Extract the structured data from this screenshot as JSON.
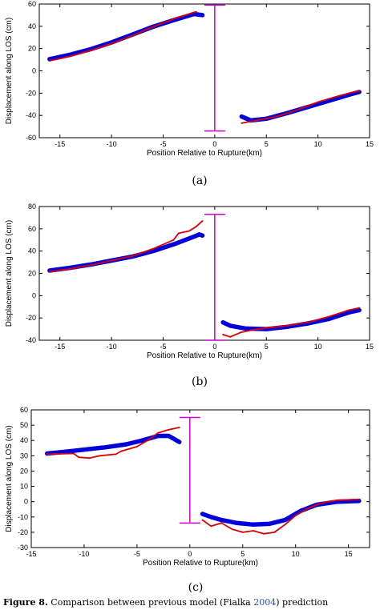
{
  "chart_data": [
    {
      "type": "scatter",
      "panel_label": "(a)",
      "xlabel": "Position Relative to Rupture(km)",
      "ylabel": "Displacement along LOS (cm)",
      "xlim": [
        -17,
        15
      ],
      "ylim": [
        -60,
        60
      ],
      "xticks": [
        -15,
        -10,
        -5,
        0,
        5,
        10,
        15
      ],
      "yticks": [
        -60,
        -40,
        -20,
        0,
        20,
        40,
        60
      ],
      "grid": false,
      "series": [
        {
          "color": "#0000dd",
          "marker": "circle",
          "segments": [
            [
              [
                -16,
                10.5
              ],
              [
                -14,
                14.5
              ],
              [
                -12,
                19.5
              ],
              [
                -10,
                25.5
              ],
              [
                -8,
                32.5
              ],
              [
                -6,
                39.5
              ],
              [
                -4,
                45.5
              ],
              [
                -2,
                51
              ],
              [
                -1.2,
                50
              ]
            ],
            [
              [
                2.6,
                -41
              ],
              [
                3.5,
                -44.5
              ],
              [
                5,
                -43
              ],
              [
                7,
                -38
              ],
              [
                9,
                -32.5
              ],
              [
                11,
                -27
              ],
              [
                13,
                -21.5
              ],
              [
                14,
                -19
              ]
            ]
          ]
        },
        {
          "color": "#dd0000",
          "marker": "line",
          "segments": [
            [
              [
                -16,
                9
              ],
              [
                -14,
                13
              ],
              [
                -12,
                18.5
              ],
              [
                -10,
                24.5
              ],
              [
                -8,
                31.5
              ],
              [
                -6,
                39.5
              ],
              [
                -4,
                46.5
              ],
              [
                -2,
                52.5
              ],
              [
                -1.8,
                53
              ]
            ],
            [
              [
                2.6,
                -47
              ],
              [
                4,
                -44.5
              ],
              [
                6,
                -41
              ],
              [
                8,
                -35
              ],
              [
                10,
                -28
              ],
              [
                12,
                -22.5
              ],
              [
                13.5,
                -19
              ],
              [
                14,
                -18
              ]
            ]
          ]
        }
      ],
      "marker_bar": {
        "x": 0,
        "y_low": -54,
        "y_high": 59,
        "color": "#cc00cc"
      }
    },
    {
      "type": "scatter",
      "panel_label": "(b)",
      "xlabel": "Position Relative to Rupture(km)",
      "ylabel": "Displacement along LOS (cm)",
      "xlim": [
        -17,
        15
      ],
      "ylim": [
        -40,
        80
      ],
      "xticks": [
        -15,
        -10,
        -5,
        0,
        5,
        10,
        15
      ],
      "yticks": [
        -40,
        -20,
        0,
        20,
        40,
        60,
        80
      ],
      "grid": false,
      "series": [
        {
          "color": "#0000dd",
          "marker": "circle",
          "segments": [
            [
              [
                -16,
                22.5
              ],
              [
                -14,
                25
              ],
              [
                -12,
                28
              ],
              [
                -10,
                31.5
              ],
              [
                -8,
                35
              ],
              [
                -6,
                40
              ],
              [
                -4,
                46
              ],
              [
                -2,
                53
              ],
              [
                -1.5,
                55
              ],
              [
                -1.2,
                54
              ]
            ],
            [
              [
                0.8,
                -24
              ],
              [
                1.5,
                -27
              ],
              [
                3,
                -29.5
              ],
              [
                5,
                -30
              ],
              [
                7,
                -28
              ],
              [
                9,
                -25
              ],
              [
                11,
                -21
              ],
              [
                13,
                -15
              ],
              [
                14,
                -13
              ]
            ]
          ]
        },
        {
          "color": "#dd0000",
          "marker": "line",
          "segments": [
            [
              [
                -16,
                21.5
              ],
              [
                -14,
                24
              ],
              [
                -12,
                27.5
              ],
              [
                -10,
                31.5
              ],
              [
                -8,
                35.5
              ],
              [
                -6,
                42
              ],
              [
                -4,
                50
              ],
              [
                -3.5,
                56
              ],
              [
                -2.5,
                58
              ],
              [
                -1.8,
                62
              ],
              [
                -1.2,
                67
              ]
            ],
            [
              [
                0.8,
                -35
              ],
              [
                1.5,
                -37
              ],
              [
                2.5,
                -33
              ],
              [
                3.5,
                -31
              ],
              [
                5,
                -29
              ],
              [
                7,
                -27
              ],
              [
                9,
                -24
              ],
              [
                11,
                -19
              ],
              [
                13,
                -13
              ],
              [
                14,
                -11
              ]
            ]
          ]
        }
      ],
      "marker_bar": {
        "x": 0,
        "y_low": -40,
        "y_high": 73,
        "color": "#cc00cc"
      }
    },
    {
      "type": "scatter",
      "panel_label": "(c)",
      "xlabel": "Position Relative to Rupture(km)",
      "ylabel": "Displacement along LOS (cm)",
      "xlim": [
        -15,
        17
      ],
      "ylim": [
        -30,
        60
      ],
      "xticks": [
        -15,
        -10,
        -5,
        0,
        5,
        10,
        15
      ],
      "yticks": [
        -30,
        -20,
        -10,
        0,
        10,
        20,
        30,
        40,
        50,
        60
      ],
      "grid": false,
      "series": [
        {
          "color": "#0000dd",
          "marker": "circle",
          "segments": [
            [
              [
                -13.5,
                31.5
              ],
              [
                -12,
                32.5
              ],
              [
                -10,
                34
              ],
              [
                -8,
                35.5
              ],
              [
                -6,
                37.5
              ],
              [
                -4.5,
                40
              ],
              [
                -3,
                43
              ],
              [
                -2,
                43
              ],
              [
                -1.5,
                41
              ],
              [
                -1,
                39
              ]
            ],
            [
              [
                1.2,
                -8
              ],
              [
                2,
                -10
              ],
              [
                3,
                -12
              ],
              [
                4.5,
                -14
              ],
              [
                6,
                -15
              ],
              [
                7.5,
                -14.5
              ],
              [
                9,
                -12
              ],
              [
                10.5,
                -6
              ],
              [
                12,
                -2
              ],
              [
                14,
                0
              ],
              [
                16,
                0.5
              ]
            ]
          ]
        },
        {
          "color": "#dd0000",
          "marker": "line",
          "segments": [
            [
              [
                -13.5,
                31
              ],
              [
                -11,
                31.5
              ],
              [
                -10.5,
                29
              ],
              [
                -9.5,
                28.5
              ],
              [
                -8.5,
                30
              ],
              [
                -7,
                31
              ],
              [
                -6.5,
                33
              ],
              [
                -5,
                36
              ],
              [
                -4,
                40
              ],
              [
                -3,
                45
              ],
              [
                -2,
                47
              ],
              [
                -1,
                48.5
              ]
            ],
            [
              [
                1.2,
                -12
              ],
              [
                2,
                -16
              ],
              [
                3,
                -14
              ],
              [
                4,
                -18
              ],
              [
                5,
                -20
              ],
              [
                6,
                -19
              ],
              [
                7,
                -21
              ],
              [
                8,
                -20
              ],
              [
                9,
                -15
              ],
              [
                10,
                -9
              ],
              [
                11,
                -5
              ],
              [
                12,
                -2
              ],
              [
                13,
                0
              ],
              [
                14,
                1
              ],
              [
                16,
                1.5
              ]
            ]
          ]
        }
      ],
      "marker_bar": {
        "x": 0,
        "y_low": -14,
        "y_high": 55,
        "color": "#cc00cc"
      }
    }
  ],
  "caption": {
    "lead": "Figure 8.",
    "text": " Comparison between previous model (Fialka ",
    "link": "2004",
    "tail": ") prediction"
  }
}
